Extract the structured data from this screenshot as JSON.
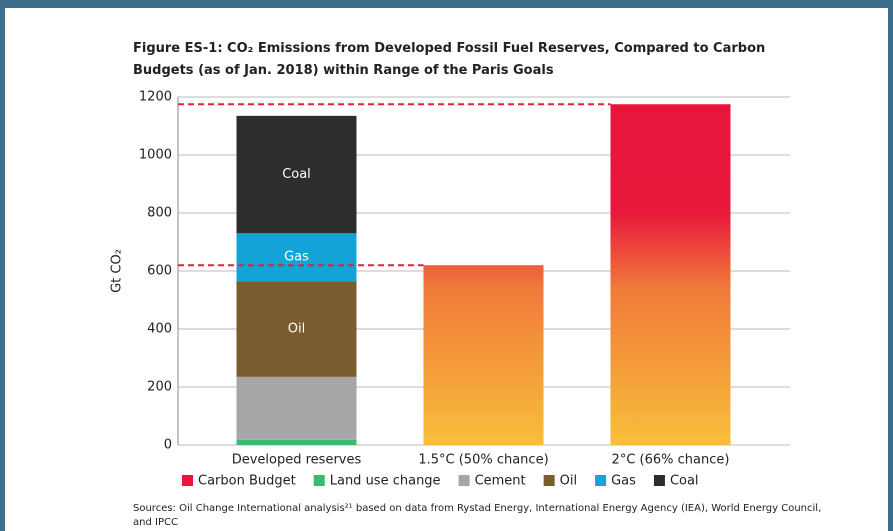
{
  "chart_data": {
    "type": "stacked_bar",
    "title": "Figure ES-1: CO₂ Emissions from Developed Fossil Fuel Reserves, Compared to Carbon Budgets (as of Jan. 2018) within Range of the Paris Goals",
    "ylabel": "Gt CO₂",
    "categories": [
      "Developed reserves",
      "1.5°C (50% chance)",
      "2°C (66% chance)"
    ],
    "series": [
      {
        "name": "Carbon Budget",
        "color": "#e8143c",
        "values": [
          null,
          620,
          1175
        ],
        "gradient": true,
        "budget_line": true
      },
      {
        "name": "Land use change",
        "color": "#3cb96e",
        "values": [
          18,
          null,
          null
        ]
      },
      {
        "name": "Cement",
        "color": "#a6a6a6",
        "values": [
          217,
          null,
          null
        ]
      },
      {
        "name": "Oil",
        "color": "#7a5c2e",
        "values": [
          330,
          null,
          null
        ],
        "inside_label": true
      },
      {
        "name": "Gas",
        "color": "#14a3d6",
        "values": [
          165,
          null,
          null
        ],
        "inside_label": true
      },
      {
        "name": "Coal",
        "color": "#2d2d2d",
        "values": [
          405,
          null,
          null
        ],
        "inside_label": true
      }
    ],
    "ylim": [
      0,
      1200
    ],
    "yticks": [
      0,
      200,
      400,
      600,
      800,
      1000,
      1200
    ],
    "grid": true,
    "source": "Sources: Oil Change International analysis²¹ based on data from Rystad Energy, International Energy Agency (IEA), World Energy Council, and IPCC"
  }
}
